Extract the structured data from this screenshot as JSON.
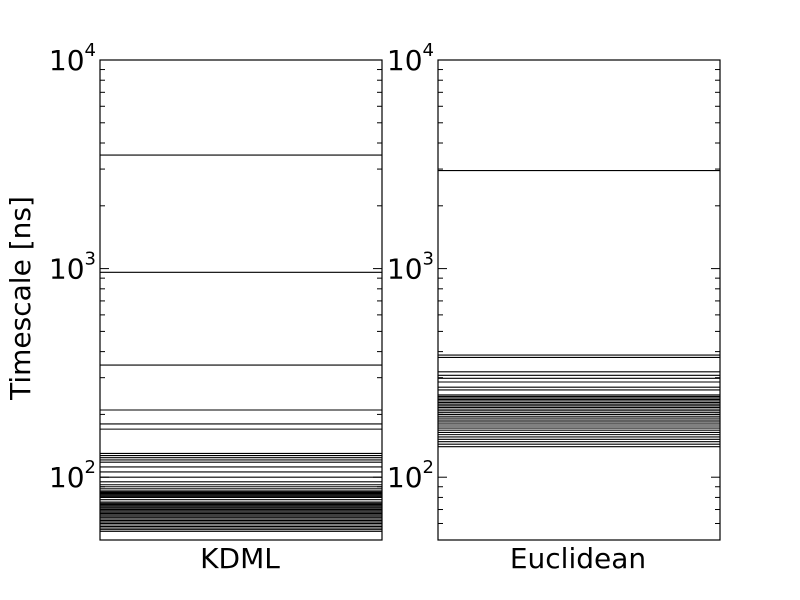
{
  "chart_data": {
    "type": "line",
    "ylabel": "Timescale [ns]",
    "yscale": "log",
    "ylim": [
      50,
      10000
    ],
    "yticks": [
      {
        "base": "10",
        "exp": "2",
        "value": 100
      },
      {
        "base": "10",
        "exp": "3",
        "value": 1000
      },
      {
        "base": "10",
        "exp": "4",
        "value": 10000
      }
    ],
    "panels": [
      {
        "name": "kdml",
        "xlabel": "KDML",
        "timescales": [
          3500,
          960,
          345,
          210,
          180,
          170,
          130,
          127,
          124,
          121,
          118,
          112,
          106,
          100,
          95,
          92,
          90,
          88,
          86,
          85,
          84,
          83,
          82,
          81,
          80,
          78,
          76,
          75,
          74,
          73,
          72,
          71,
          70,
          69,
          68,
          67,
          66,
          65,
          64,
          63,
          62,
          61,
          60,
          59,
          58,
          57,
          56,
          55
        ]
      },
      {
        "name": "euclidean",
        "xlabel": "Euclidean",
        "timescales": [
          2950,
          385,
          375,
          320,
          308,
          298,
          286,
          270,
          262,
          248,
          244,
          240,
          236,
          232,
          228,
          224,
          220,
          216,
          212,
          208,
          204,
          200,
          196,
          192,
          188,
          184,
          180,
          176,
          172,
          168,
          164,
          160,
          156,
          152,
          148,
          144,
          140
        ]
      }
    ]
  }
}
